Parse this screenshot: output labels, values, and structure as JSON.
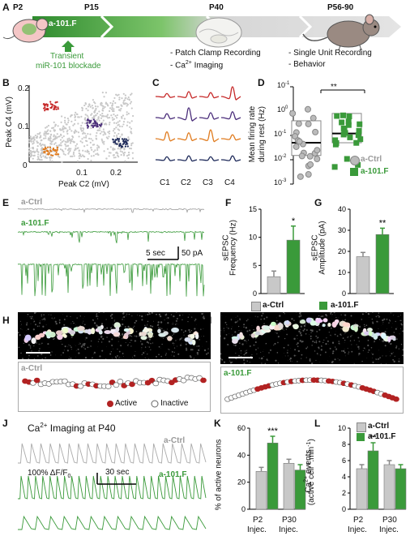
{
  "panels": {
    "A": {
      "label": "A",
      "timepoints": [
        "P2",
        "P15",
        "P40",
        "P56-90"
      ],
      "construct": "a-101.F",
      "blockade_line1": "Transient",
      "blockade_line2": "miR-101 blockade",
      "p40_items": [
        "- Patch Clamp Recording",
        "- Ca",
        "2+",
        " Imaging"
      ],
      "p56_items": [
        "- Single Unit Recording",
        "- Behavior"
      ]
    },
    "B": {
      "label": "B",
      "ylabel": "Peak C4 (mV)",
      "xlabel": "Peak C2 (mV)",
      "yticks": [
        "0.2",
        "0.1"
      ],
      "xticks": [
        "0.1",
        "0.2"
      ],
      "origin": "0"
    },
    "C": {
      "label": "C",
      "columns": [
        "C1",
        "C2",
        "C3",
        "C4"
      ],
      "row_colors": [
        "#c62828",
        "#4a2d7a",
        "#e07b1e",
        "#1e2a5a"
      ]
    },
    "D": {
      "label": "D",
      "ylabel_1": "Mean firing rate",
      "ylabel_2": "during rest (Hz)",
      "yticks": [
        "10",
        "0",
        "-1",
        "-2",
        "-3"
      ],
      "sig": "**",
      "legend": [
        "a-Ctrl",
        "a-101.F"
      ]
    },
    "E": {
      "label": "E",
      "trace1": "a-Ctrl",
      "trace2": "a-101.F",
      "scale": "5 sec",
      "scale_pa": "50 pA"
    },
    "F": {
      "label": "F",
      "ylabel_1": "sEPSC",
      "ylabel_2": "Frequency (Hz)",
      "yticks": [
        "15",
        "10",
        "5",
        "0"
      ],
      "sig": "*"
    },
    "G": {
      "label": "G",
      "ylabel_1": "sEPSC",
      "ylabel_2": "Amplitude (pA)",
      "yticks": [
        "40",
        "30",
        "20",
        "10",
        "0"
      ],
      "sig": "**"
    },
    "FG_legend": [
      "a-Ctrl",
      "a-101.F"
    ],
    "H": {
      "label": "H",
      "map_title": "a-Ctrl",
      "legend_active": "Active",
      "legend_inactive": "Inactive"
    },
    "I": {
      "label": "I",
      "map_title": "a-101.F"
    },
    "J": {
      "label": "J",
      "title_1": "Ca",
      "title_sup": "2+",
      "title_2": " Imaging at P40",
      "trace1": "a-Ctrl",
      "trace2": "a-101.F",
      "scale_pre": "100% ΔF/F",
      "scale_sub": "0",
      "scale_time": "30 sec"
    },
    "K": {
      "label": "K",
      "ylabel": "% of active neurons",
      "yticks": [
        "60",
        "40",
        "20",
        "0"
      ],
      "groups_1": [
        "P2",
        "P30"
      ],
      "groups_2": [
        "Injec.",
        "Injec."
      ],
      "sig": "***"
    },
    "L": {
      "label": "L",
      "ylabel_1": "Ca",
      "ylabel_1_sup": "2+",
      "ylabel_1b": " events",
      "ylabel_2": "(active cell",
      "ylabel_2_sup1": "-1",
      "ylabel_2b": ".min",
      "ylabel_2_sup2": "-1",
      "ylabel_2c": ")",
      "yticks": [
        "10",
        "8",
        "6",
        "4",
        "2",
        "0"
      ],
      "groups_1": [
        "P2",
        "P30"
      ],
      "groups_2": [
        "Injec.",
        "Injec."
      ],
      "sig": "**",
      "legend": [
        "a-Ctrl",
        "a-101.F"
      ]
    }
  },
  "chart_data": [
    {
      "id": "F",
      "type": "bar",
      "categories": [
        "a-Ctrl",
        "a-101.F"
      ],
      "values": [
        3.0,
        9.5
      ],
      "errors": [
        1.0,
        2.5
      ],
      "ylim": [
        0,
        15
      ],
      "colors": [
        "#c8c8c8",
        "#3a9a3a"
      ]
    },
    {
      "id": "G",
      "type": "bar",
      "categories": [
        "a-Ctrl",
        "a-101.F"
      ],
      "values": [
        17.5,
        28
      ],
      "errors": [
        2.0,
        3.0
      ],
      "ylim": [
        0,
        40
      ],
      "colors": [
        "#c8c8c8",
        "#3a9a3a"
      ]
    },
    {
      "id": "K",
      "type": "bar",
      "categories": [
        "P2 Injec.",
        "P30 Injec."
      ],
      "series": [
        {
          "name": "a-Ctrl",
          "values": [
            28,
            34
          ],
          "errors": [
            3,
            3
          ]
        },
        {
          "name": "a-101.F",
          "values": [
            49,
            29
          ],
          "errors": [
            5,
            4
          ]
        }
      ],
      "ylim": [
        0,
        60
      ]
    },
    {
      "id": "L",
      "type": "bar",
      "categories": [
        "P2 Injec.",
        "P30 Injec."
      ],
      "series": [
        {
          "name": "a-Ctrl",
          "values": [
            5.0,
            5.5
          ],
          "errors": [
            0.5,
            0.5
          ]
        },
        {
          "name": "a-101.F",
          "values": [
            7.2,
            5.0
          ],
          "errors": [
            1.0,
            0.5
          ]
        }
      ],
      "ylim": [
        0,
        10
      ]
    },
    {
      "id": "D",
      "type": "scatter",
      "yscale": "log",
      "ylim": [
        0.001,
        10
      ],
      "series": [
        {
          "name": "a-Ctrl",
          "median": 0.05,
          "q1": 0.015,
          "q3": 0.4
        },
        {
          "name": "a-101.F",
          "median": 0.12,
          "q1": 0.05,
          "q3": 0.8
        }
      ]
    }
  ]
}
